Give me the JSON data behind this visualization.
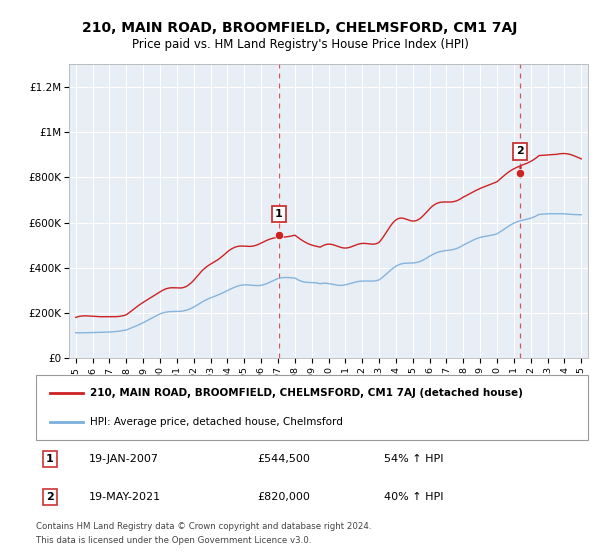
{
  "title": "210, MAIN ROAD, BROOMFIELD, CHELMSFORD, CM1 7AJ",
  "subtitle": "Price paid vs. HM Land Registry's House Price Index (HPI)",
  "sale1_year": 2007.05,
  "sale1_price": 544500,
  "sale1_label": "1",
  "sale1_date": "19-JAN-2007",
  "sale1_hpi_str": "54% ↑ HPI",
  "sale2_year": 2021.38,
  "sale2_price": 820000,
  "sale2_label": "2",
  "sale2_date": "19-MAY-2021",
  "sale2_hpi_str": "40% ↑ HPI",
  "hpi_color": "#7aaedb",
  "price_color": "#cc2222",
  "vline_color": "#cc3333",
  "legend_entry1": "210, MAIN ROAD, BROOMFIELD, CHELMSFORD, CM1 7AJ (detached house)",
  "legend_entry2": "HPI: Average price, detached house, Chelmsford",
  "footer_line1": "Contains HM Land Registry data © Crown copyright and database right 2024.",
  "footer_line2": "This data is licensed under the Open Government Licence v3.0.",
  "ylim_min": 0,
  "ylim_max": 1300000,
  "yticks": [
    0,
    200000,
    400000,
    600000,
    800000,
    1000000,
    1200000
  ],
  "ytick_labels": [
    "£0",
    "£200K",
    "£400K",
    "£600K",
    "£800K",
    "£1M",
    "£1.2M"
  ],
  "plot_bg_color": "#e8eef5",
  "background_color": "#ffffff",
  "grid_color": "#ffffff"
}
